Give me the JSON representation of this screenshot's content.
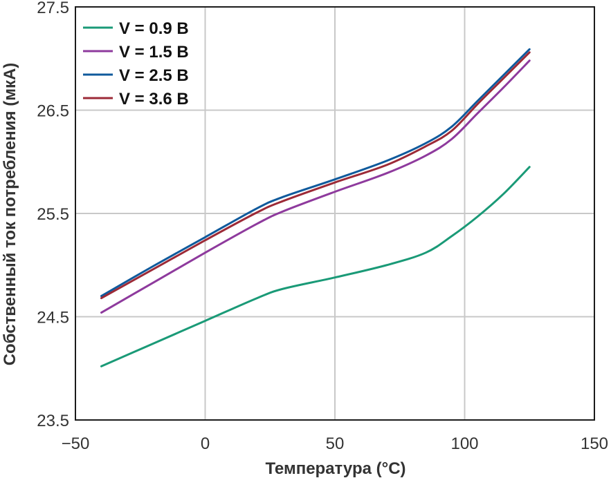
{
  "chart_data": {
    "type": "line",
    "xlabel": "Температура (°C)",
    "ylabel": "Собственный ток потребления (мкА)",
    "xlim": [
      -50,
      150
    ],
    "ylim": [
      23.5,
      27.5
    ],
    "xticks": [
      -50,
      0,
      50,
      100,
      150
    ],
    "yticks": [
      23.5,
      24.5,
      25.5,
      26.5,
      27.5
    ],
    "xtick_labels": [
      "−50",
      "0",
      "50",
      "100",
      "150"
    ],
    "ytick_labels": [
      "23.5",
      "24.5",
      "25.5",
      "26.5",
      "27.5"
    ],
    "grid": true,
    "legend_position": "top-left",
    "x": [
      -40,
      -20,
      0,
      20,
      30,
      50,
      70,
      85,
      95,
      105,
      115,
      125
    ],
    "series": [
      {
        "name": "V = 0.9 В",
        "color": "#1a9a77",
        "values": [
          24.02,
          24.24,
          24.46,
          24.68,
          24.77,
          24.88,
          25.0,
          25.12,
          25.28,
          25.47,
          25.69,
          25.95
        ]
      },
      {
        "name": "V = 1.5 В",
        "color": "#8e3a9d",
        "values": [
          24.54,
          24.83,
          25.12,
          25.4,
          25.52,
          25.71,
          25.89,
          26.06,
          26.22,
          26.47,
          26.72,
          26.98
        ]
      },
      {
        "name": "V = 2.5 В",
        "color": "#0f5a9c",
        "values": [
          24.7,
          24.99,
          25.27,
          25.55,
          25.66,
          25.83,
          26.01,
          26.18,
          26.34,
          26.59,
          26.84,
          27.09
        ]
      },
      {
        "name": "V = 3.6 В",
        "color": "#9c2a37",
        "values": [
          24.68,
          24.96,
          25.24,
          25.51,
          25.62,
          25.8,
          25.97,
          26.15,
          26.3,
          26.56,
          26.81,
          27.06
        ]
      }
    ]
  }
}
